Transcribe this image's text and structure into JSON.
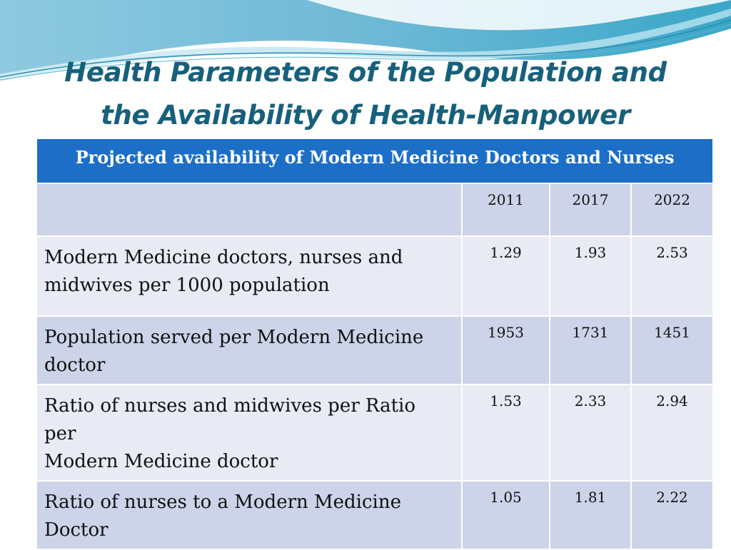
{
  "slide": {
    "title_line1": "Health Parameters of the Population and",
    "title_line2": "the Availability of Health-Manpower"
  },
  "table": {
    "caption": "Projected availability of Modern Medicine Doctors and Nurses",
    "years": [
      "2011",
      "2017",
      "2022"
    ],
    "rows": [
      {
        "label": "Modern Medicine doctors, nurses and\nmidwives per 1000 population",
        "values": [
          "1.29",
          "1.93",
          "2.53"
        ]
      },
      {
        "label": "Population served per Modern Medicine\ndoctor",
        "values": [
          "1953",
          "1731",
          "1451"
        ]
      },
      {
        "label": "Ratio of nurses and midwives per Ratio\nper\nModern Medicine doctor",
        "values": [
          "1.53",
          "2.33",
          "2.94"
        ]
      },
      {
        "label": "Ratio of nurses to a Modern Medicine\nDoctor",
        "values": [
          "1.05",
          "1.81",
          "2.22"
        ]
      }
    ]
  },
  "colors": {
    "title": "#17607c",
    "header_blue": "#1d6ec6",
    "row_dark": "#cdd3e8",
    "row_light": "#e8eaf4"
  }
}
